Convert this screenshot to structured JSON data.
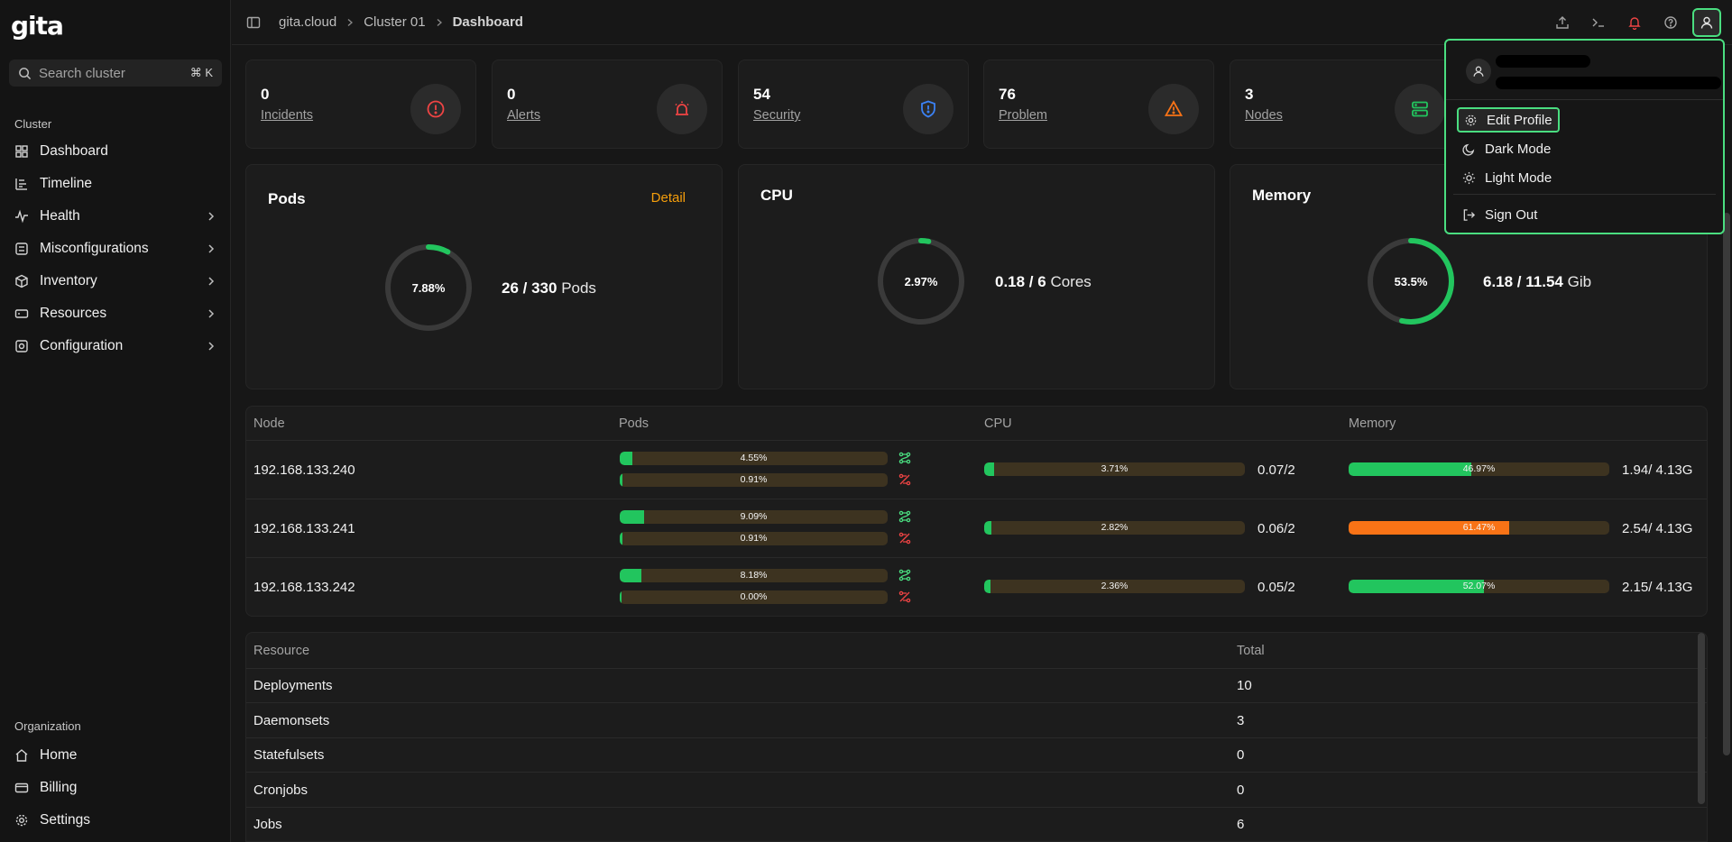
{
  "app": {
    "logo": "gita"
  },
  "search": {
    "placeholder": "Search cluster",
    "shortcut": "⌘ K"
  },
  "sidebar": {
    "section_cluster": "Cluster",
    "cluster_items": [
      {
        "label": "Dashboard",
        "icon": "grid-icon"
      },
      {
        "label": "Timeline",
        "icon": "timeline-icon"
      },
      {
        "label": "Health",
        "icon": "activity-icon"
      },
      {
        "label": "Misconfigurations",
        "icon": "misconfig-icon"
      },
      {
        "label": "Inventory",
        "icon": "box-icon"
      },
      {
        "label": "Resources",
        "icon": "resources-icon"
      },
      {
        "label": "Configuration",
        "icon": "configuration-icon"
      }
    ],
    "section_org": "Organization",
    "org_items": [
      {
        "label": "Home",
        "icon": "home-icon"
      },
      {
        "label": "Billing",
        "icon": "billing-icon"
      },
      {
        "label": "Settings",
        "icon": "gear-icon"
      }
    ]
  },
  "breadcrumb": {
    "root": "gita.cloud",
    "cluster": "Cluster 01",
    "current": "Dashboard"
  },
  "stats": [
    {
      "value": "0",
      "label": "Incidents",
      "color": "#ef4444"
    },
    {
      "value": "0",
      "label": "Alerts",
      "color": "#ef4444"
    },
    {
      "value": "54",
      "label": "Security",
      "color": "#3b82f6"
    },
    {
      "value": "76",
      "label": "Problem",
      "color": "#f97316"
    },
    {
      "value": "3",
      "label": "Nodes",
      "color": "#22c55e"
    }
  ],
  "pods_card": {
    "title": "Pods",
    "detail": "Detail",
    "percent": "7.88%",
    "used": "26 / 330",
    "unit": "Pods",
    "fraction": 0.0788
  },
  "cpu_card": {
    "title": "CPU",
    "percent": "2.97%",
    "used": "0.18 / 6",
    "unit": "Cores",
    "fraction": 0.0297
  },
  "memory_card": {
    "title": "Memory",
    "percent": "53.5%",
    "used": "6.18 / 11.54",
    "unit": "Gib",
    "fraction": 0.535
  },
  "node_table": {
    "headers": {
      "node": "Node",
      "pods": "Pods",
      "cpu": "CPU",
      "memory": "Memory"
    },
    "rows": [
      {
        "ip": "192.168.133.240",
        "pods_a": "4.55%",
        "pods_a_f": 0.0455,
        "pods_b": "0.91%",
        "pods_b_f": 0.0091,
        "cpu": "3.71%",
        "cpu_f": 0.0371,
        "cpu_val": "0.07/2",
        "mem": "46.97%",
        "mem_f": 0.4697,
        "mem_color": "#22c55e",
        "mem_val": "1.94/ 4.13G"
      },
      {
        "ip": "192.168.133.241",
        "pods_a": "9.09%",
        "pods_a_f": 0.0909,
        "pods_b": "0.91%",
        "pods_b_f": 0.0091,
        "cpu": "2.82%",
        "cpu_f": 0.0282,
        "cpu_val": "0.06/2",
        "mem": "61.47%",
        "mem_f": 0.6147,
        "mem_color": "#f97316",
        "mem_val": "2.54/ 4.13G"
      },
      {
        "ip": "192.168.133.242",
        "pods_a": "8.18%",
        "pods_a_f": 0.0818,
        "pods_b": "0.00%",
        "pods_b_f": 0,
        "cpu": "2.36%",
        "cpu_f": 0.0236,
        "cpu_val": "0.05/2",
        "mem": "52.07%",
        "mem_f": 0.5207,
        "mem_color": "#22c55e",
        "mem_val": "2.15/ 4.13G"
      }
    ]
  },
  "resource_table": {
    "headers": {
      "resource": "Resource",
      "total": "Total"
    },
    "rows": [
      {
        "name": "Deployments",
        "total": "10"
      },
      {
        "name": "Daemonsets",
        "total": "3"
      },
      {
        "name": "Statefulsets",
        "total": "0"
      },
      {
        "name": "Cronjobs",
        "total": "0"
      },
      {
        "name": "Jobs",
        "total": "6"
      }
    ]
  },
  "user_menu": {
    "items": [
      {
        "label": "Edit Profile",
        "icon": "gear-icon"
      },
      {
        "label": "Dark Mode",
        "icon": "moon-icon"
      },
      {
        "label": "Light Mode",
        "icon": "sun-icon"
      },
      {
        "label": "Sign Out",
        "icon": "sign-out-icon"
      }
    ]
  },
  "colors": {
    "accent_green": "#22c55e",
    "bar_track": "#3d3320",
    "detail_orange": "#f59e0b",
    "highlight": "#4ade80"
  }
}
